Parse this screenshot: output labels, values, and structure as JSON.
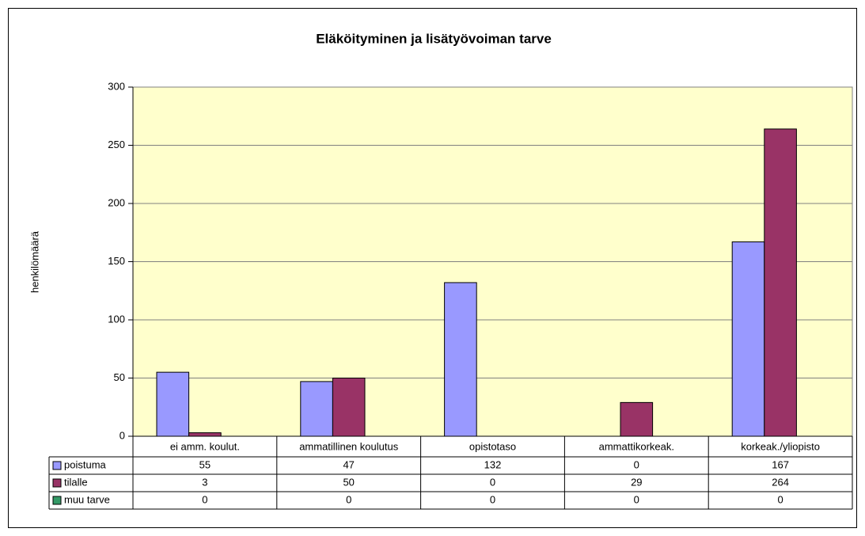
{
  "chart_data": {
    "type": "bar",
    "title": "Eläköityminen ja lisätyövoiman tarve",
    "y_label": "henkilömäärä",
    "categories": [
      "ei amm. koulut.",
      "ammatillinen koulutus",
      "opistotaso",
      "ammattikorkeak.",
      "korkeak./yliopisto"
    ],
    "series": [
      {
        "name": "poistuma",
        "color": "#9999ff",
        "values": [
          55,
          47,
          132,
          0,
          167
        ]
      },
      {
        "name": "tilalle",
        "color": "#993366",
        "values": [
          3,
          50,
          0,
          29,
          264
        ]
      },
      {
        "name": "muu tarve",
        "color": "#339966",
        "values": [
          0,
          0,
          0,
          0,
          0
        ]
      }
    ],
    "ylim": [
      0,
      300
    ],
    "yticks": [
      0,
      50,
      100,
      150,
      200,
      250,
      300
    ],
    "grid": true,
    "plot_background": "#ffffcc"
  }
}
